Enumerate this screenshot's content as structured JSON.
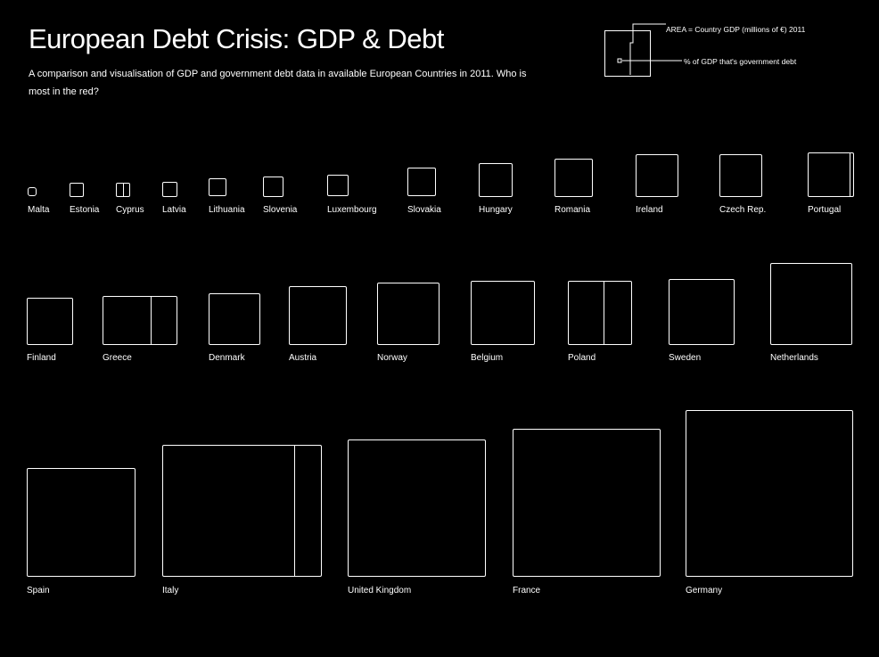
{
  "title": "European Debt Crisis: GDP & Debt",
  "subtitle": "A comparison and visualisation of GDP and government debt data in available European Countries in 2011. Who is most in the red?",
  "legend": {
    "area_label": "AREA = Country GDP (millions of  €) 2011",
    "debt_label": "% of GDP that's government debt"
  },
  "countries": [
    {
      "name": "Malta",
      "label": "Malta"
    },
    {
      "name": "Estonia",
      "label": "Estonia"
    },
    {
      "name": "Cyprus",
      "label": "Cyprus"
    },
    {
      "name": "Latvia",
      "label": "Latvia"
    },
    {
      "name": "Lithuania",
      "label": "Lithuania"
    },
    {
      "name": "Slovenia",
      "label": "Slovenia"
    },
    {
      "name": "Luxembourg",
      "label": "Luxembourg"
    },
    {
      "name": "Slovakia",
      "label": "Slovakia"
    },
    {
      "name": "Hungary",
      "label": "Hungary"
    },
    {
      "name": "Romania",
      "label": "Romania"
    },
    {
      "name": "Ireland",
      "label": "Ireland"
    },
    {
      "name": "Czech Rep.",
      "label": "Czech Rep."
    },
    {
      "name": "Portugal",
      "label": "Portugal"
    },
    {
      "name": "Finland",
      "label": "Finland"
    },
    {
      "name": "Greece",
      "label": "Greece"
    },
    {
      "name": "Denmark",
      "label": "Denmark"
    },
    {
      "name": "Austria",
      "label": "Austria"
    },
    {
      "name": "Norway",
      "label": "Norway"
    },
    {
      "name": "Belgium",
      "label": "Belgium"
    },
    {
      "name": "Poland",
      "label": "Poland"
    },
    {
      "name": "Sweden",
      "label": "Sweden"
    },
    {
      "name": "Netherlands",
      "label": "Netherlands"
    },
    {
      "name": "Spain",
      "label": "Spain"
    },
    {
      "name": "Italy",
      "label": "Italy"
    },
    {
      "name": "United Kingdom",
      "label": "United Kingdom"
    },
    {
      "name": "France",
      "label": "France"
    },
    {
      "name": "Germany",
      "label": "Germany"
    }
  ],
  "colors": {
    "background": "#000000",
    "stroke": "#ffffff"
  }
}
